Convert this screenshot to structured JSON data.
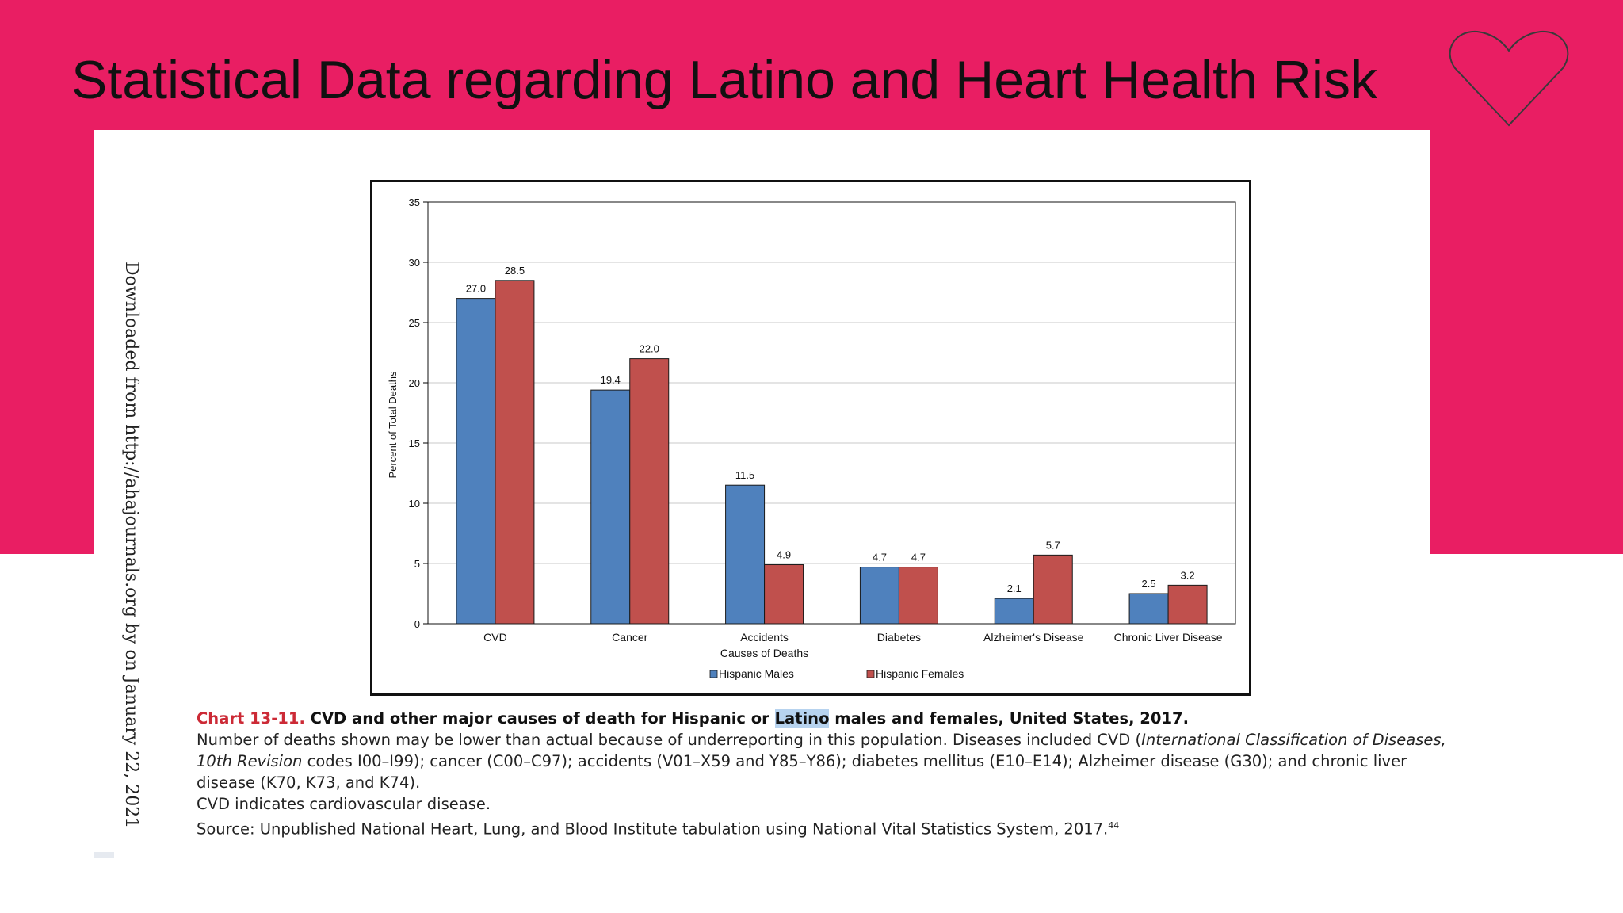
{
  "slide": {
    "title": "Statistical Data regarding Latino and Heart Health Risk",
    "accent_color": "#e91e63",
    "decoration_icon": "heart-outline-icon"
  },
  "side_note": "Downloaded from http://ahajournals.org by on January 22, 2021",
  "chart_data": {
    "type": "bar",
    "categories": [
      "CVD",
      "Cancer",
      "Accidents",
      "Diabetes",
      "Alzheimer's Disease",
      "Chronic Liver Disease"
    ],
    "series": [
      {
        "name": "Hispanic Males",
        "color": "#4f81bd",
        "values": [
          27.0,
          19.4,
          11.5,
          4.7,
          2.1,
          2.5
        ],
        "labels": [
          "27.0",
          "19.4",
          "11.5",
          "4.7",
          "2.1",
          "2.5"
        ]
      },
      {
        "name": "Hispanic Females",
        "color": "#c0504d",
        "values": [
          28.5,
          22.0,
          4.9,
          4.7,
          5.7,
          3.2
        ],
        "labels": [
          "28.5",
          "22.0",
          "4.9",
          "4.7",
          "5.7",
          "3.2"
        ]
      }
    ],
    "xlabel": "Causes of Deaths",
    "ylabel": "Percent of Total Deaths",
    "ylim": [
      0,
      35
    ],
    "yticks": [
      0,
      5,
      10,
      15,
      20,
      25,
      30,
      35
    ],
    "grid": true,
    "legend": "bottom-center"
  },
  "caption": {
    "label": "Chart 13-11.",
    "title_before": "CVD and other major causes of death for Hispanic or",
    "title_highlight": "Latino",
    "title_after": "males and females, United States, 2017.",
    "line1_a": "Number of deaths shown may be lower than actual because of underreporting in this population. Diseases included CVD (",
    "line1_italic": "International Classification of Diseases,",
    "line2_italic": "10th Revision",
    "line2_b": "codes I00–I99); cancer (C00–C97); accidents (V01–X59 and Y85–Y86); diabetes mellitus (E10–E14); Alzheimer disease (G30); and chronic liver",
    "line3": "disease (K70, K73, and K74).",
    "line4": "CVD indicates cardiovascular disease.",
    "line5": "Source: Unpublished National Heart, Lung, and Blood Institute tabulation using National Vital Statistics System, 2017.",
    "line5_sup": "44"
  }
}
